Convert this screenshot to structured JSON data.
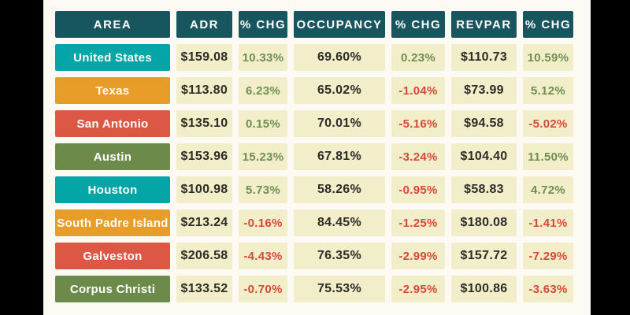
{
  "table": {
    "headers": [
      {
        "label": "AREA"
      },
      {
        "label": "ADR"
      },
      {
        "label": "% CHG"
      },
      {
        "label": "OCCUPANCY"
      },
      {
        "label": "% CHG"
      },
      {
        "label": "REVPAR"
      },
      {
        "label": "% CHG"
      }
    ],
    "rows": [
      {
        "area": "United States",
        "color": "teal",
        "adr": "$159.08",
        "adr_chg": "10.33%",
        "adr_chg_dir": "up",
        "occupancy": "69.60%",
        "occ_chg": "0.23%",
        "occ_chg_dir": "up",
        "revpar": "$110.73",
        "revpar_chg": "10.59%",
        "revpar_chg_dir": "up"
      },
      {
        "area": "Texas",
        "color": "orange",
        "adr": "$113.80",
        "adr_chg": "6.23%",
        "adr_chg_dir": "up",
        "occupancy": "65.02%",
        "occ_chg": "-1.04%",
        "occ_chg_dir": "down",
        "revpar": "$73.99",
        "revpar_chg": "5.12%",
        "revpar_chg_dir": "up"
      },
      {
        "area": "San Antonio",
        "color": "red",
        "adr": "$135.10",
        "adr_chg": "0.15%",
        "adr_chg_dir": "up",
        "occupancy": "70.01%",
        "occ_chg": "-5.16%",
        "occ_chg_dir": "down",
        "revpar": "$94.58",
        "revpar_chg": "-5.02%",
        "revpar_chg_dir": "down"
      },
      {
        "area": "Austin",
        "color": "olive",
        "adr": "$153.96",
        "adr_chg": "15.23%",
        "adr_chg_dir": "up",
        "occupancy": "67.81%",
        "occ_chg": "-3.24%",
        "occ_chg_dir": "down",
        "revpar": "$104.40",
        "revpar_chg": "11.50%",
        "revpar_chg_dir": "up"
      },
      {
        "area": "Houston",
        "color": "teal",
        "adr": "$100.98",
        "adr_chg": "5.73%",
        "adr_chg_dir": "up",
        "occupancy": "58.26%",
        "occ_chg": "-0.95%",
        "occ_chg_dir": "down",
        "revpar": "$58.83",
        "revpar_chg": "4.72%",
        "revpar_chg_dir": "up"
      },
      {
        "area": "South Padre Island",
        "color": "orange",
        "adr": "$213.24",
        "adr_chg": "-0.16%",
        "adr_chg_dir": "down",
        "occupancy": "84.45%",
        "occ_chg": "-1.25%",
        "occ_chg_dir": "down",
        "revpar": "$180.08",
        "revpar_chg": "-1.41%",
        "revpar_chg_dir": "down"
      },
      {
        "area": "Galveston",
        "color": "red",
        "adr": "$206.58",
        "adr_chg": "-4.43%",
        "adr_chg_dir": "down",
        "occupancy": "76.35%",
        "occ_chg": "-2.99%",
        "occ_chg_dir": "down",
        "revpar": "$157.72",
        "revpar_chg": "-7.29%",
        "revpar_chg_dir": "down"
      },
      {
        "area": "Corpus Christi",
        "color": "olive",
        "adr": "$133.52",
        "adr_chg": "-0.70%",
        "adr_chg_dir": "down",
        "occupancy": "75.53%",
        "occ_chg": "-2.95%",
        "occ_chg_dir": "down",
        "revpar": "$100.86",
        "revpar_chg": "-3.63%",
        "revpar_chg_dir": "down"
      }
    ]
  },
  "colors": {
    "header_bg": "#17565E",
    "row_teal": "#04A5A6",
    "row_orange": "#E79D27",
    "row_red": "#DC5744",
    "row_olive": "#6C8B4A",
    "cell_bg": "#F2EECA",
    "positive_text": "#6F8F50",
    "negative_text": "#D5493A",
    "value_text": "#2D2C27",
    "panel_bg": "#FCFAF3",
    "frame_bg": "#000000"
  },
  "chart_data": {
    "type": "table",
    "title": "",
    "columns": [
      "AREA",
      "ADR",
      "% CHG",
      "OCCUPANCY",
      "% CHG",
      "REVPAR",
      "% CHG"
    ],
    "rows": [
      [
        "United States",
        159.08,
        10.33,
        69.6,
        0.23,
        110.73,
        10.59
      ],
      [
        "Texas",
        113.8,
        6.23,
        65.02,
        -1.04,
        73.99,
        5.12
      ],
      [
        "San Antonio",
        135.1,
        0.15,
        70.01,
        -5.16,
        94.58,
        -5.02
      ],
      [
        "Austin",
        153.96,
        15.23,
        67.81,
        -3.24,
        104.4,
        11.5
      ],
      [
        "Houston",
        100.98,
        5.73,
        58.26,
        -0.95,
        58.83,
        4.72
      ],
      [
        "South Padre Island",
        213.24,
        -0.16,
        84.45,
        -1.25,
        180.08,
        -1.41
      ],
      [
        "Galveston",
        206.58,
        -4.43,
        76.35,
        -2.99,
        157.72,
        -7.29
      ],
      [
        "Corpus Christi",
        133.52,
        -0.7,
        75.53,
        -2.95,
        100.86,
        -3.63
      ]
    ],
    "units": {
      "ADR": "USD",
      "OCCUPANCY": "percent",
      "REVPAR": "USD",
      "% CHG": "percent"
    }
  }
}
